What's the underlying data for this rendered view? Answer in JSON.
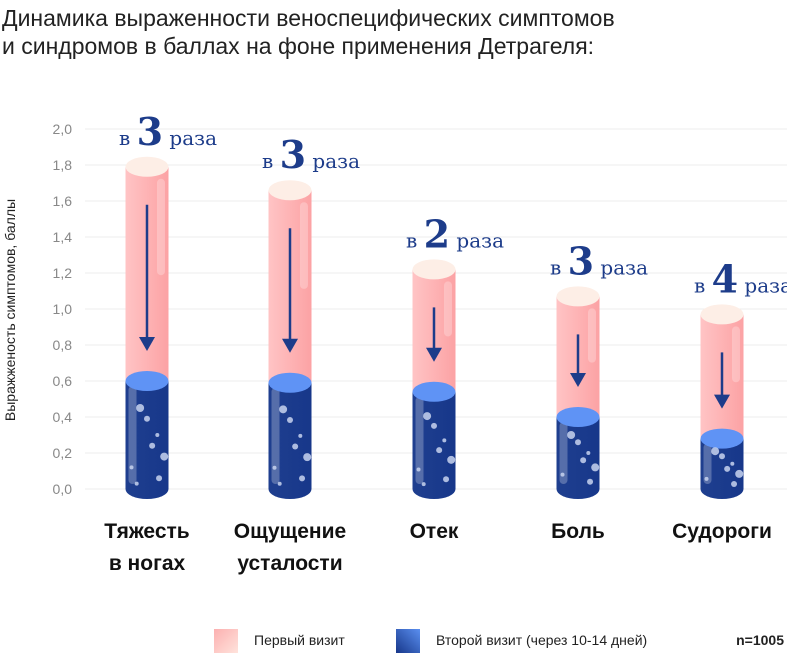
{
  "title_lines": [
    "Динамика выраженности веноспецифических симптомов",
    "и синдромов в баллах на фоне применения Детрагеля:"
  ],
  "note": "n=1005",
  "chart_data": {
    "type": "bar",
    "ylabel": "Выражженость симптомов, баллы",
    "ylim": [
      0,
      2.0
    ],
    "yticks": [
      "0,0",
      "0,2",
      "0,4",
      "0,6",
      "0,8",
      "1,0",
      "1,2",
      "1,4",
      "1,6",
      "1,8",
      "2,0"
    ],
    "grid": true,
    "legend_position": "bottom",
    "categories": [
      [
        "Тяжесть",
        "в ногах"
      ],
      [
        "Ощущение",
        "усталости"
      ],
      [
        "Отек"
      ],
      [
        "Боль"
      ],
      [
        "Судороги"
      ]
    ],
    "series": [
      {
        "name": "Первый визит",
        "color": "#fca9ab",
        "values": [
          1.79,
          1.66,
          1.22,
          1.07,
          0.97
        ]
      },
      {
        "name": "Второй визит (через 10-14 дней)",
        "color": "#1a3a8a",
        "values": [
          0.6,
          0.59,
          0.54,
          0.4,
          0.28
        ]
      }
    ],
    "annotations": [
      {
        "prefix": "в",
        "factor": "3",
        "suffix": "раза"
      },
      {
        "prefix": "в",
        "factor": "3",
        "suffix": "раза"
      },
      {
        "prefix": "в",
        "factor": "2",
        "suffix": "раза"
      },
      {
        "prefix": "в",
        "factor": "3",
        "suffix": "раза"
      },
      {
        "prefix": "в",
        "factor": "4",
        "suffix": "раза"
      }
    ]
  }
}
